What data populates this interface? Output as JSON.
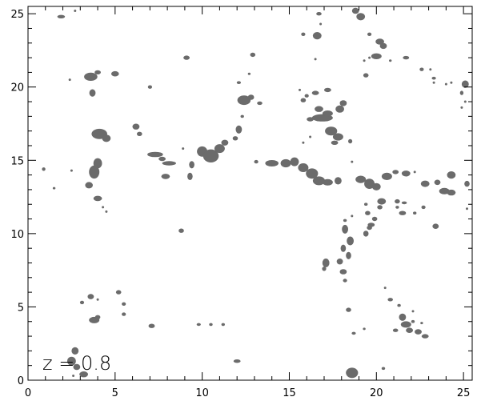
{
  "chart_data": {
    "type": "scatter",
    "title": "",
    "xlabel": "",
    "ylabel": "",
    "xlim": [
      0,
      25.5
    ],
    "ylim": [
      0,
      25.5
    ],
    "x_ticks": [
      0,
      5,
      10,
      15,
      20,
      25
    ],
    "y_ticks": [
      0,
      5,
      10,
      15,
      20,
      25
    ],
    "grid": false,
    "annotation": "z = 0.8",
    "colors": {
      "blob": "#6b6b6b",
      "axis": "#000000"
    },
    "points": [
      [
        1.9,
        24.8,
        0.22,
        0.12
      ],
      [
        2.7,
        25.2,
        0.05,
        0.05
      ],
      [
        3.6,
        20.7,
        0.38,
        0.28
      ],
      [
        4.0,
        21.0,
        0.18,
        0.14
      ],
      [
        3.7,
        19.6,
        0.18,
        0.25
      ],
      [
        5.0,
        20.9,
        0.22,
        0.18
      ],
      [
        2.4,
        20.5,
        0.04,
        0.04
      ],
      [
        4.1,
        16.8,
        0.45,
        0.35
      ],
      [
        4.5,
        16.5,
        0.25,
        0.25
      ],
      [
        4.0,
        14.8,
        0.25,
        0.35
      ],
      [
        3.8,
        14.2,
        0.3,
        0.45
      ],
      [
        3.5,
        13.3,
        0.22,
        0.22
      ],
      [
        4.0,
        12.4,
        0.25,
        0.18
      ],
      [
        4.3,
        11.8,
        0.05,
        0.05
      ],
      [
        4.5,
        11.5,
        0.05,
        0.05
      ],
      [
        0.9,
        14.4,
        0.1,
        0.12
      ],
      [
        1.5,
        13.1,
        0.08,
        0.08
      ],
      [
        2.5,
        14.3,
        0.05,
        0.05
      ],
      [
        6.2,
        17.3,
        0.2,
        0.2
      ],
      [
        6.4,
        16.8,
        0.15,
        0.15
      ],
      [
        7.0,
        20.0,
        0.12,
        0.12
      ],
      [
        7.3,
        15.4,
        0.45,
        0.18
      ],
      [
        7.7,
        15.1,
        0.2,
        0.15
      ],
      [
        8.1,
        14.8,
        0.4,
        0.15
      ],
      [
        7.9,
        13.9,
        0.25,
        0.18
      ],
      [
        8.9,
        15.8,
        0.05,
        0.05
      ],
      [
        9.1,
        22.0,
        0.18,
        0.15
      ],
      [
        8.8,
        10.2,
        0.15,
        0.15
      ],
      [
        9.3,
        13.9,
        0.15,
        0.25
      ],
      [
        9.4,
        14.7,
        0.15,
        0.25
      ],
      [
        10.0,
        15.6,
        0.3,
        0.35
      ],
      [
        10.5,
        15.3,
        0.45,
        0.45
      ],
      [
        11.0,
        15.8,
        0.3,
        0.3
      ],
      [
        11.3,
        16.2,
        0.2,
        0.2
      ],
      [
        11.9,
        16.5,
        0.15,
        0.15
      ],
      [
        12.1,
        17.1,
        0.18,
        0.28
      ],
      [
        12.3,
        18.0,
        0.1,
        0.1
      ],
      [
        12.4,
        19.1,
        0.38,
        0.32
      ],
      [
        12.8,
        19.3,
        0.18,
        0.18
      ],
      [
        13.3,
        18.9,
        0.15,
        0.12
      ],
      [
        12.1,
        20.3,
        0.12,
        0.1
      ],
      [
        12.7,
        20.9,
        0.08,
        0.06
      ],
      [
        12.9,
        22.2,
        0.15,
        0.15
      ],
      [
        12.0,
        1.3,
        0.2,
        0.12
      ],
      [
        13.1,
        14.9,
        0.12,
        0.12
      ],
      [
        14.0,
        14.8,
        0.38,
        0.22
      ],
      [
        14.8,
        14.8,
        0.3,
        0.28
      ],
      [
        15.3,
        14.9,
        0.25,
        0.3
      ],
      [
        15.8,
        14.5,
        0.3,
        0.3
      ],
      [
        16.3,
        14.1,
        0.35,
        0.35
      ],
      [
        16.7,
        13.6,
        0.35,
        0.3
      ],
      [
        17.2,
        13.5,
        0.3,
        0.22
      ],
      [
        17.8,
        13.6,
        0.2,
        0.25
      ],
      [
        16.9,
        17.9,
        0.6,
        0.25
      ],
      [
        16.7,
        18.5,
        0.25,
        0.2
      ],
      [
        17.2,
        18.2,
        0.3,
        0.2
      ],
      [
        17.4,
        17.0,
        0.35,
        0.3
      ],
      [
        17.8,
        16.6,
        0.3,
        0.25
      ],
      [
        17.6,
        16.2,
        0.2,
        0.15
      ],
      [
        17.9,
        18.5,
        0.25,
        0.25
      ],
      [
        18.1,
        18.9,
        0.2,
        0.2
      ],
      [
        16.5,
        19.6,
        0.2,
        0.15
      ],
      [
        17.2,
        19.8,
        0.2,
        0.15
      ],
      [
        18.5,
        16.3,
        0.12,
        0.15
      ],
      [
        18.6,
        14.9,
        0.05,
        0.05
      ],
      [
        19.1,
        13.7,
        0.3,
        0.25
      ],
      [
        19.6,
        13.4,
        0.3,
        0.35
      ],
      [
        20.0,
        13.2,
        0.25,
        0.25
      ],
      [
        20.6,
        13.9,
        0.3,
        0.25
      ],
      [
        21.1,
        14.2,
        0.18,
        0.15
      ],
      [
        21.7,
        14.1,
        0.25,
        0.2
      ],
      [
        22.2,
        14.2,
        0.05,
        0.05
      ],
      [
        22.8,
        13.4,
        0.25,
        0.22
      ],
      [
        23.5,
        13.5,
        0.18,
        0.18
      ],
      [
        24.3,
        14.0,
        0.25,
        0.25
      ],
      [
        23.9,
        12.9,
        0.3,
        0.22
      ],
      [
        24.3,
        12.8,
        0.25,
        0.2
      ],
      [
        25.2,
        13.4,
        0.15,
        0.2
      ],
      [
        20.3,
        12.2,
        0.25,
        0.22
      ],
      [
        20.2,
        11.8,
        0.15,
        0.15
      ],
      [
        21.2,
        12.2,
        0.15,
        0.15
      ],
      [
        21.6,
        12.1,
        0.15,
        0.1
      ],
      [
        21.2,
        11.8,
        0.1,
        0.1
      ],
      [
        21.5,
        11.4,
        0.2,
        0.15
      ],
      [
        19.4,
        12.0,
        0.1,
        0.1
      ],
      [
        19.5,
        11.4,
        0.15,
        0.15
      ],
      [
        19.9,
        11.0,
        0.15,
        0.15
      ],
      [
        19.7,
        10.6,
        0.2,
        0.15
      ],
      [
        19.6,
        10.4,
        0.15,
        0.15
      ],
      [
        19.4,
        10.0,
        0.15,
        0.2
      ],
      [
        22.2,
        11.4,
        0.1,
        0.1
      ],
      [
        18.6,
        11.2,
        0.05,
        0.05
      ],
      [
        18.2,
        10.9,
        0.1,
        0.1
      ],
      [
        18.2,
        10.3,
        0.18,
        0.3
      ],
      [
        18.5,
        9.5,
        0.2,
        0.3
      ],
      [
        18.1,
        9.0,
        0.15,
        0.25
      ],
      [
        18.4,
        8.5,
        0.15,
        0.25
      ],
      [
        17.9,
        8.1,
        0.18,
        0.2
      ],
      [
        18.1,
        7.4,
        0.2,
        0.18
      ],
      [
        18.2,
        6.8,
        0.12,
        0.12
      ],
      [
        17.1,
        8.0,
        0.2,
        0.3
      ],
      [
        17.0,
        7.6,
        0.12,
        0.15
      ],
      [
        22.7,
        11.8,
        0.12,
        0.12
      ],
      [
        23.4,
        10.5,
        0.18,
        0.18
      ],
      [
        25.2,
        11.7,
        0.05,
        0.05
      ],
      [
        18.4,
        4.8,
        0.15,
        0.15
      ],
      [
        18.7,
        3.2,
        0.12,
        0.1
      ],
      [
        19.3,
        3.5,
        0.08,
        0.08
      ],
      [
        18.6,
        0.5,
        0.35,
        0.35
      ],
      [
        20.4,
        0.8,
        0.1,
        0.1
      ],
      [
        20.5,
        6.3,
        0.05,
        0.05
      ],
      [
        20.8,
        5.5,
        0.15,
        0.12
      ],
      [
        21.3,
        5.1,
        0.1,
        0.1
      ],
      [
        21.5,
        4.3,
        0.2,
        0.25
      ],
      [
        21.7,
        3.8,
        0.3,
        0.22
      ],
      [
        22.1,
        4.0,
        0.1,
        0.1
      ],
      [
        21.9,
        3.4,
        0.2,
        0.18
      ],
      [
        22.4,
        3.3,
        0.2,
        0.18
      ],
      [
        22.8,
        3.0,
        0.2,
        0.15
      ],
      [
        22.6,
        3.9,
        0.08,
        0.08
      ],
      [
        22.1,
        4.7,
        0.05,
        0.05
      ],
      [
        21.1,
        3.4,
        0.15,
        0.12
      ],
      [
        19.1,
        24.8,
        0.25,
        0.25
      ],
      [
        18.8,
        25.2,
        0.2,
        0.2
      ],
      [
        20.2,
        23.1,
        0.25,
        0.2
      ],
      [
        20.4,
        22.8,
        0.2,
        0.2
      ],
      [
        20.0,
        22.1,
        0.3,
        0.2
      ],
      [
        20.8,
        21.8,
        0.08,
        0.08
      ],
      [
        19.6,
        23.6,
        0.12,
        0.12
      ],
      [
        19.6,
        22.0,
        0.05,
        0.05
      ],
      [
        19.3,
        21.8,
        0.05,
        0.05
      ],
      [
        21.7,
        22.0,
        0.18,
        0.12
      ],
      [
        22.6,
        21.2,
        0.12,
        0.12
      ],
      [
        23.3,
        20.6,
        0.12,
        0.1
      ],
      [
        19.4,
        20.8,
        0.15,
        0.15
      ],
      [
        23.1,
        21.2,
        0.05,
        0.05
      ],
      [
        23.3,
        20.3,
        0.05,
        0.05
      ],
      [
        24.0,
        20.2,
        0.05,
        0.05
      ],
      [
        24.3,
        20.3,
        0.05,
        0.05
      ],
      [
        25.1,
        20.2,
        0.2,
        0.25
      ],
      [
        24.9,
        19.6,
        0.1,
        0.15
      ],
      [
        25.1,
        19.0,
        0.05,
        0.05
      ],
      [
        24.9,
        18.6,
        0.05,
        0.05
      ],
      [
        16.7,
        25.0,
        0.15,
        0.12
      ],
      [
        16.8,
        24.3,
        0.05,
        0.05
      ],
      [
        16.6,
        23.5,
        0.25,
        0.25
      ],
      [
        15.8,
        23.6,
        0.12,
        0.12
      ],
      [
        16.5,
        21.9,
        0.05,
        0.05
      ],
      [
        15.6,
        19.8,
        0.05,
        0.05
      ],
      [
        15.8,
        19.1,
        0.15,
        0.15
      ],
      [
        16.0,
        19.4,
        0.12,
        0.12
      ],
      [
        16.2,
        17.8,
        0.2,
        0.15
      ],
      [
        15.8,
        16.2,
        0.05,
        0.05
      ],
      [
        16.2,
        16.6,
        0.05,
        0.05
      ],
      [
        7.1,
        3.7,
        0.18,
        0.15
      ],
      [
        9.8,
        3.8,
        0.12,
        0.1
      ],
      [
        10.5,
        3.8,
        0.1,
        0.1
      ],
      [
        11.2,
        3.8,
        0.1,
        0.1
      ],
      [
        3.1,
        5.3,
        0.12,
        0.12
      ],
      [
        3.6,
        5.7,
        0.18,
        0.18
      ],
      [
        4.0,
        5.5,
        0.05,
        0.05
      ],
      [
        5.2,
        6.0,
        0.15,
        0.15
      ],
      [
        5.5,
        5.2,
        0.12,
        0.12
      ],
      [
        5.5,
        4.5,
        0.12,
        0.12
      ],
      [
        3.8,
        4.1,
        0.3,
        0.22
      ],
      [
        4.0,
        4.3,
        0.15,
        0.15
      ],
      [
        2.7,
        2.0,
        0.2,
        0.25
      ],
      [
        2.5,
        1.3,
        0.25,
        0.3
      ],
      [
        2.8,
        0.9,
        0.2,
        0.2
      ],
      [
        3.2,
        0.4,
        0.25,
        0.2
      ],
      [
        2.6,
        0.3,
        0.05,
        0.05
      ]
    ]
  }
}
